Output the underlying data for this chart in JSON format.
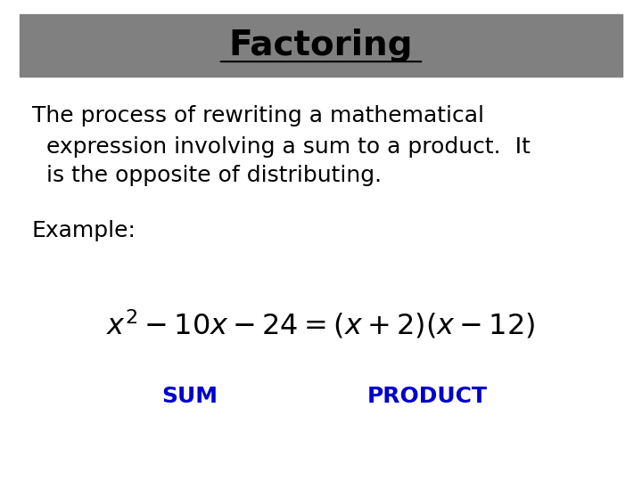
{
  "title": "Factoring",
  "title_fontsize": 28,
  "title_color": "#000000",
  "title_bg_color": "#808080",
  "body_text_line1": "The process of rewriting a mathematical",
  "body_text_line2": "  expression involving a sum to a product.  It",
  "body_text_line3": "  is the opposite of distributing.",
  "body_fontsize": 18,
  "example_label": "Example:",
  "example_fontsize": 18,
  "sum_label": "SUM",
  "product_label": "PRODUCT",
  "label_color": "#0000CC",
  "label_fontsize": 18,
  "background_color": "#ffffff",
  "text_color": "#000000"
}
